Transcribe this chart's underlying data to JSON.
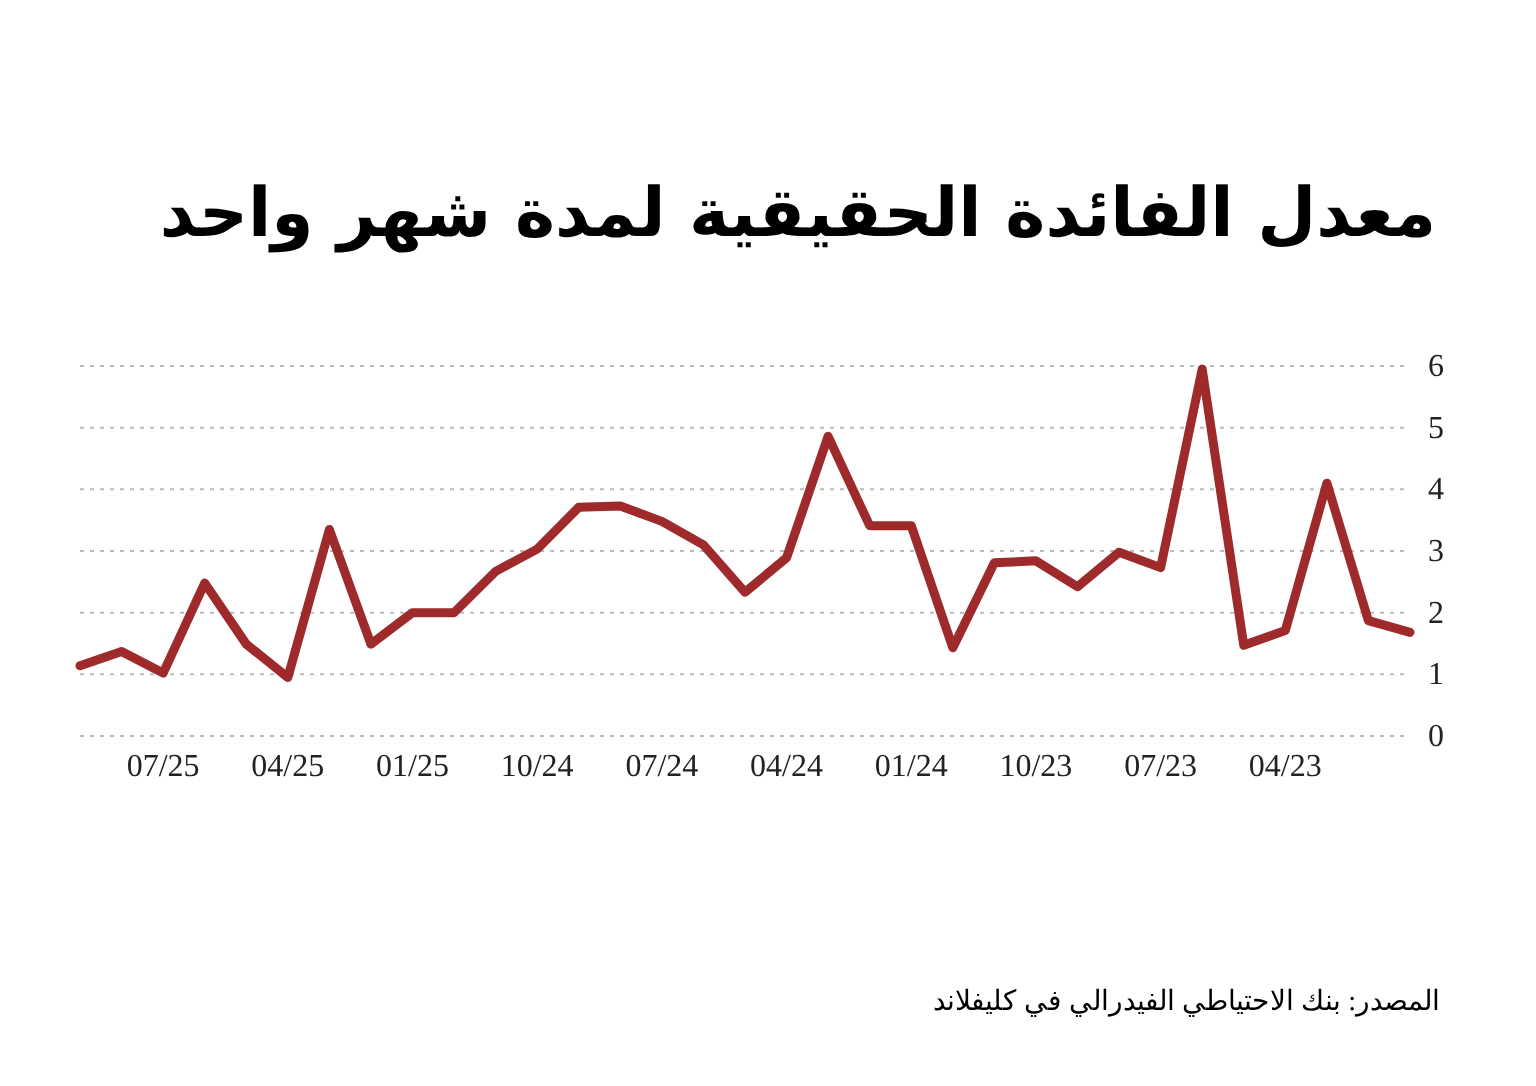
{
  "chart_data": {
    "type": "line",
    "title": "معدل الفائدة الحقيقية لمدة شهر واحد",
    "annotations": [
      "المصدر: بنك الاحتياطي الفيدرالي في كليفلاند"
    ],
    "x": [
      "2025-09",
      "2025-08",
      "2025-07",
      "2025-06",
      "2025-05",
      "2025-04",
      "2025-03",
      "2025-02",
      "2025-01",
      "2024-12",
      "2024-11",
      "2024-10",
      "2024-09",
      "2024-08",
      "2024-07",
      "2024-06",
      "2024-05",
      "2024-04",
      "2024-03",
      "2024-02",
      "2024-01",
      "2023-12",
      "2023-11",
      "2023-10",
      "2023-09",
      "2023-08",
      "2023-07",
      "2023-06",
      "2023-05",
      "2023-04",
      "2023-03",
      "2023-02",
      "2023-01"
    ],
    "values": [
      1.14,
      1.37,
      1.02,
      2.48,
      1.49,
      0.95,
      3.35,
      1.49,
      2.0,
      2.0,
      2.67,
      3.03,
      3.71,
      3.73,
      3.48,
      3.1,
      2.33,
      2.89,
      4.86,
      3.41,
      3.41,
      1.43,
      2.81,
      2.84,
      2.42,
      2.98,
      2.73,
      5.95,
      1.47,
      1.71,
      4.1,
      1.87,
      1.68
    ],
    "color": "#9e2a2b",
    "line_style": "solid",
    "grid": "y",
    "xlim": [
      "2025-09",
      "2023-01"
    ],
    "xticks": [
      {
        "value": "2025-07",
        "label": "07/25"
      },
      {
        "value": "2025-04",
        "label": "04/25"
      },
      {
        "value": "2025-01",
        "label": "01/25"
      },
      {
        "value": "2024-10",
        "label": "10/24"
      },
      {
        "value": "2024-07",
        "label": "07/24"
      },
      {
        "value": "2024-04",
        "label": "04/24"
      },
      {
        "value": "2024-01",
        "label": "01/24"
      },
      {
        "value": "2023-10",
        "label": "10/23"
      },
      {
        "value": "2023-07",
        "label": "07/23"
      },
      {
        "value": "2023-04",
        "label": "04/23"
      }
    ],
    "ylim": [
      0,
      6
    ],
    "yticks": [
      0,
      1,
      2,
      3,
      4,
      5,
      6
    ]
  }
}
